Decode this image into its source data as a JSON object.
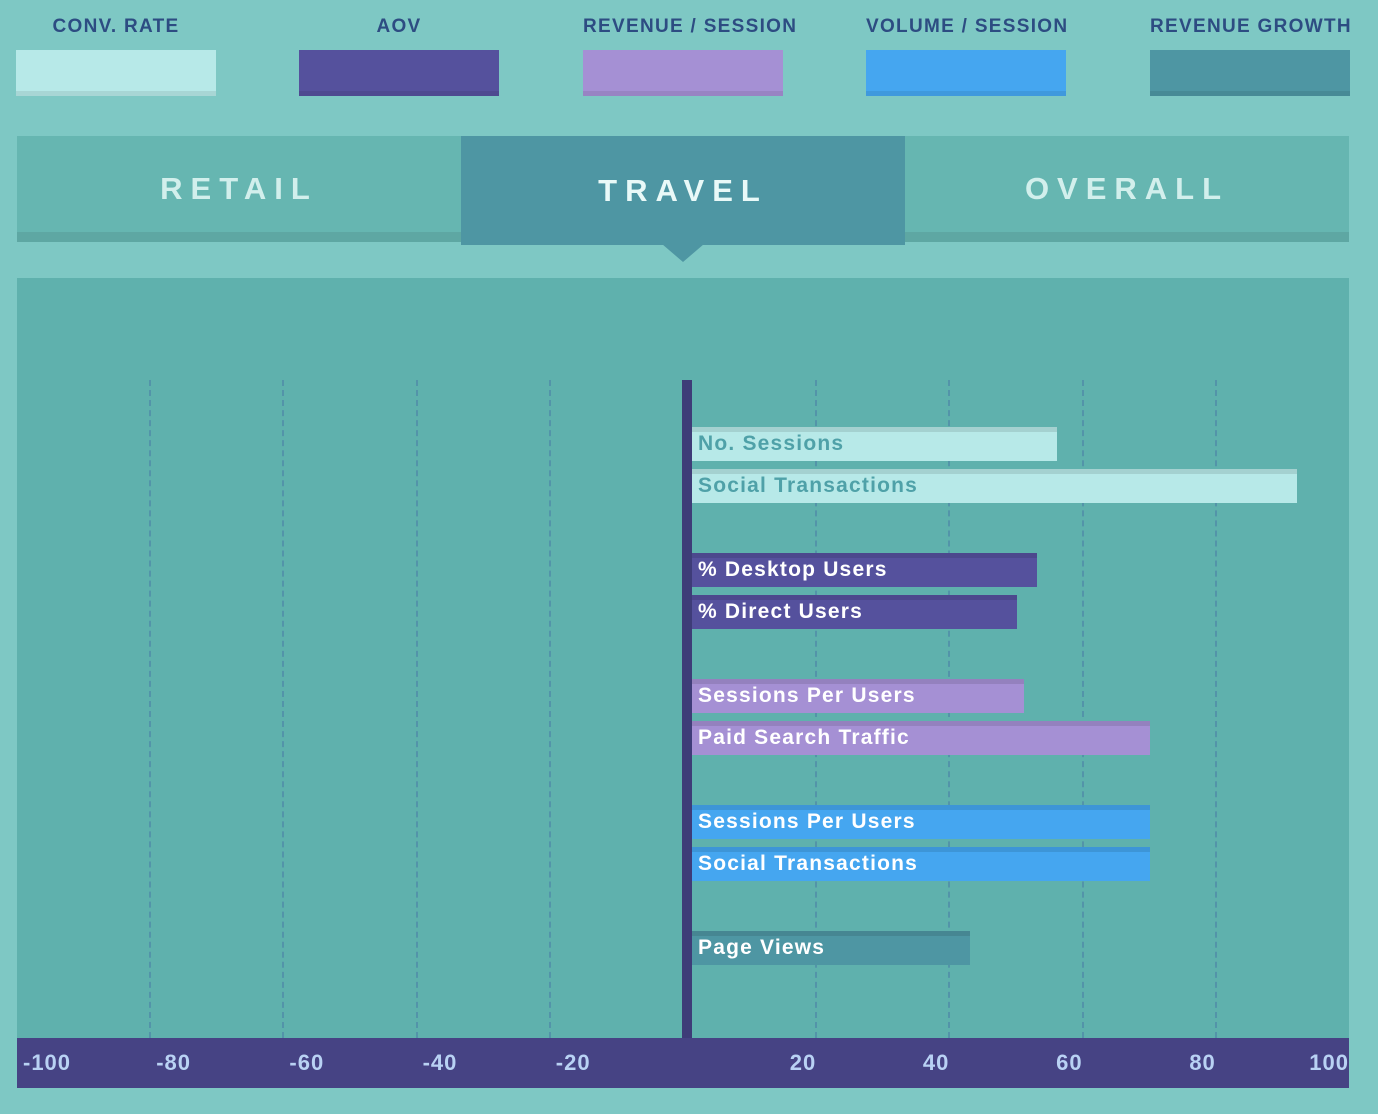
{
  "colors": {
    "page_bg": "#7ec8c4",
    "chart_bg": "#5fb1ad",
    "tab_inactive": "#66b6b1",
    "tab_active": "#4e96a3",
    "tab_text": "#d2efec",
    "tab_text_active": "#e9f9f8",
    "header_text": "#2d4c82",
    "axis_bar": "#464384",
    "zero_axis": "#3e3c78",
    "gridline": "#4a7ea6",
    "tick_text": "#b9d2f4"
  },
  "legend": {
    "items": [
      {
        "label": "CONV. RATE",
        "color": "#b7e9e8"
      },
      {
        "label": "AOV",
        "color": "#55519d"
      },
      {
        "label": "REVENUE / SESSION",
        "color": "#a590d4"
      },
      {
        "label": "VOLUME / SESSION",
        "color": "#45a6f0"
      },
      {
        "label": "REVENUE GROWTH",
        "color": "#4e96a3"
      }
    ]
  },
  "tabs": [
    {
      "label": "RETAIL",
      "active": false
    },
    {
      "label": "TRAVEL",
      "active": true
    },
    {
      "label": "OVERALL",
      "active": false
    }
  ],
  "chart_data": {
    "type": "bar",
    "orientation": "horizontal",
    "xlim": [
      -100,
      100
    ],
    "x_ticks": [
      -100,
      -80,
      -60,
      -40,
      -20,
      20,
      40,
      60,
      80,
      100
    ],
    "gridline_values": [
      -80,
      -60,
      -40,
      -20,
      20,
      40,
      60,
      80
    ],
    "grid": true,
    "legend_position": "top",
    "series": [
      {
        "name": "CONV. RATE",
        "color": "#b7e9e8",
        "text_color": "#4fa1a8",
        "bars": [
          {
            "label": "No. Sessions",
            "value": 56
          },
          {
            "label": "Social Transactions",
            "value": 92
          }
        ]
      },
      {
        "name": "AOV",
        "color": "#55519d",
        "text_color": "#ffffff",
        "bars": [
          {
            "label": "% Desktop Users",
            "value": 53
          },
          {
            "label": "% Direct Users",
            "value": 50
          }
        ]
      },
      {
        "name": "REVENUE / SESSION",
        "color": "#a590d4",
        "text_color": "#ffffff",
        "bars": [
          {
            "label": "Sessions Per Users",
            "value": 51
          },
          {
            "label": "Paid Search Traffic",
            "value": 70
          }
        ]
      },
      {
        "name": "VOLUME / SESSION",
        "color": "#45a6f0",
        "text_color": "#ffffff",
        "bars": [
          {
            "label": "Sessions Per Users",
            "value": 70
          },
          {
            "label": "Social Transactions",
            "value": 70
          }
        ]
      },
      {
        "name": "REVENUE GROWTH",
        "color": "#4e96a3",
        "text_color": "#ffffff",
        "bars": [
          {
            "label": "Page Views",
            "value": 43
          }
        ]
      }
    ]
  }
}
